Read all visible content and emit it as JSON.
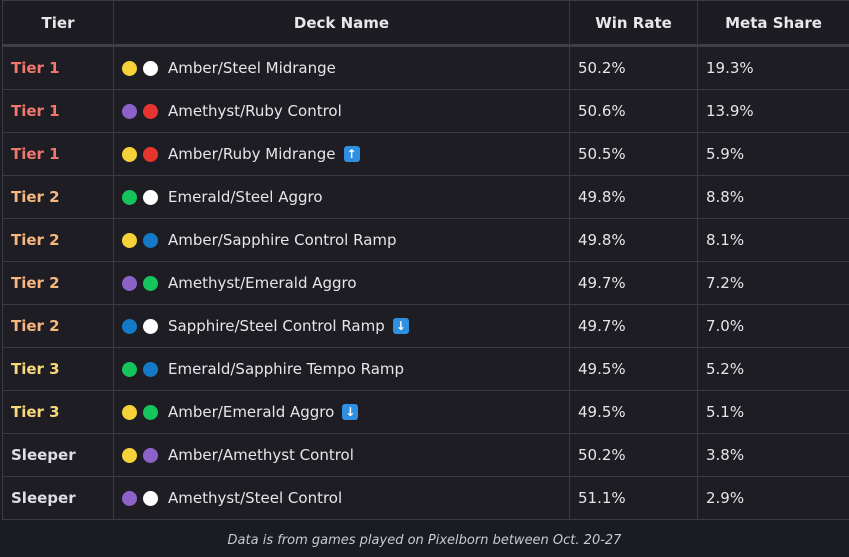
{
  "colors": {
    "tier1": "#f2776f",
    "tier2": "#f7b77e",
    "tier3": "#f8d97a",
    "sleeper": "#dedee6",
    "amber": "#f7d13a",
    "steel": "#ffffff",
    "amethyst": "#8c62c9",
    "ruby": "#e8342f",
    "emerald": "#16c45e",
    "sapphire": "#1479c7",
    "badge": "#2f8fe0"
  },
  "table": {
    "headers": [
      "Tier",
      "Deck Name",
      "Win Rate",
      "Meta Share"
    ],
    "rows": [
      {
        "tier": "Tier 1",
        "tier_color": "#f2776f",
        "dots": [
          "#f7d13a",
          "#ffffff"
        ],
        "deck": "Amber/Steel Midrange",
        "badge": "",
        "win_rate": "50.2%",
        "meta_share": "19.3%"
      },
      {
        "tier": "Tier 1",
        "tier_color": "#f2776f",
        "dots": [
          "#8c62c9",
          "#e8342f"
        ],
        "deck": "Amethyst/Ruby Control",
        "badge": "",
        "win_rate": "50.6%",
        "meta_share": "13.9%"
      },
      {
        "tier": "Tier 1",
        "tier_color": "#f2776f",
        "dots": [
          "#f7d13a",
          "#e8342f"
        ],
        "deck": "Amber/Ruby Midrange",
        "badge": "up",
        "win_rate": "50.5%",
        "meta_share": "5.9%"
      },
      {
        "tier": "Tier 2",
        "tier_color": "#f7b77e",
        "dots": [
          "#16c45e",
          "#ffffff"
        ],
        "deck": "Emerald/Steel Aggro",
        "badge": "",
        "win_rate": "49.8%",
        "meta_share": "8.8%"
      },
      {
        "tier": "Tier 2",
        "tier_color": "#f7b77e",
        "dots": [
          "#f7d13a",
          "#1479c7"
        ],
        "deck": "Amber/Sapphire Control Ramp",
        "badge": "",
        "win_rate": "49.8%",
        "meta_share": "8.1%"
      },
      {
        "tier": "Tier 2",
        "tier_color": "#f7b77e",
        "dots": [
          "#8c62c9",
          "#16c45e"
        ],
        "deck": "Amethyst/Emerald Aggro",
        "badge": "",
        "win_rate": "49.7%",
        "meta_share": "7.2%"
      },
      {
        "tier": "Tier 2",
        "tier_color": "#f7b77e",
        "dots": [
          "#1479c7",
          "#ffffff"
        ],
        "deck": "Sapphire/Steel Control Ramp",
        "badge": "down",
        "win_rate": "49.7%",
        "meta_share": "7.0%"
      },
      {
        "tier": "Tier 3",
        "tier_color": "#f8d97a",
        "dots": [
          "#16c45e",
          "#1479c7"
        ],
        "deck": "Emerald/Sapphire Tempo Ramp",
        "badge": "",
        "win_rate": "49.5%",
        "meta_share": "5.2%"
      },
      {
        "tier": "Tier 3",
        "tier_color": "#f8d97a",
        "dots": [
          "#f7d13a",
          "#16c45e"
        ],
        "deck": "Amber/Emerald Aggro",
        "badge": "down",
        "win_rate": "49.5%",
        "meta_share": "5.1%"
      },
      {
        "tier": "Sleeper",
        "tier_color": "#dedee6",
        "dots": [
          "#f7d13a",
          "#8c62c9"
        ],
        "deck": "Amber/Amethyst Control",
        "badge": "",
        "win_rate": "50.2%",
        "meta_share": "3.8%"
      },
      {
        "tier": "Sleeper",
        "tier_color": "#dedee6",
        "dots": [
          "#8c62c9",
          "#ffffff"
        ],
        "deck": "Amethyst/Steel Control",
        "badge": "",
        "win_rate": "51.1%",
        "meta_share": "2.9%"
      }
    ]
  },
  "footer": "Data is from games played on Pixelborn between Oct. 20-27"
}
